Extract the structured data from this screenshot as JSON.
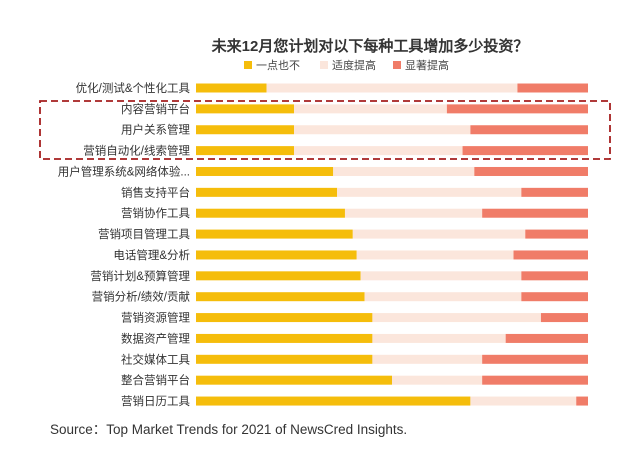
{
  "chart_data": {
    "type": "bar",
    "stacked": true,
    "orientation": "horizontal",
    "title": "未来12月您计划对以下每种工具增加多少投资？",
    "xlabel": "",
    "ylabel": "",
    "xlim": [
      0,
      100
    ],
    "legend_position": "top",
    "categories": [
      "优化/测试&个性化工具",
      "内容营销平台",
      "用户关系管理",
      "营销自动化/线索管理",
      "用户管理系统&网络体验...",
      "销售支持平台",
      "营销协作工具",
      "营销项目管理工具",
      "电话管理&分析",
      "营销计划&预算管理",
      "营销分析/绩效/贡献",
      "营销资源管理",
      "数据资产管理",
      "社交媒体工具",
      "整合营销平台",
      "营销日历工具"
    ],
    "series": [
      {
        "name": "一点也不",
        "color": "#F5BD0B",
        "values": [
          18,
          25,
          25,
          25,
          35,
          36,
          38,
          40,
          41,
          42,
          43,
          45,
          45,
          45,
          50,
          70
        ]
      },
      {
        "name": "适度提高",
        "color": "#FBE6DC",
        "values": [
          64,
          39,
          45,
          43,
          36,
          47,
          35,
          44,
          40,
          41,
          40,
          43,
          34,
          28,
          23,
          27
        ]
      },
      {
        "name": "显著提高",
        "color": "#F07C68",
        "values": [
          18,
          36,
          30,
          32,
          29,
          17,
          27,
          16,
          19,
          17,
          17,
          12,
          21,
          27,
          27,
          3
        ]
      }
    ],
    "annotation": "dashed box highlighting 内容营销平台, 用户关系管理, 营销自动化/线索管理"
  },
  "source": "Source：Top Market Trends for 2021  of NewsCred Insights."
}
